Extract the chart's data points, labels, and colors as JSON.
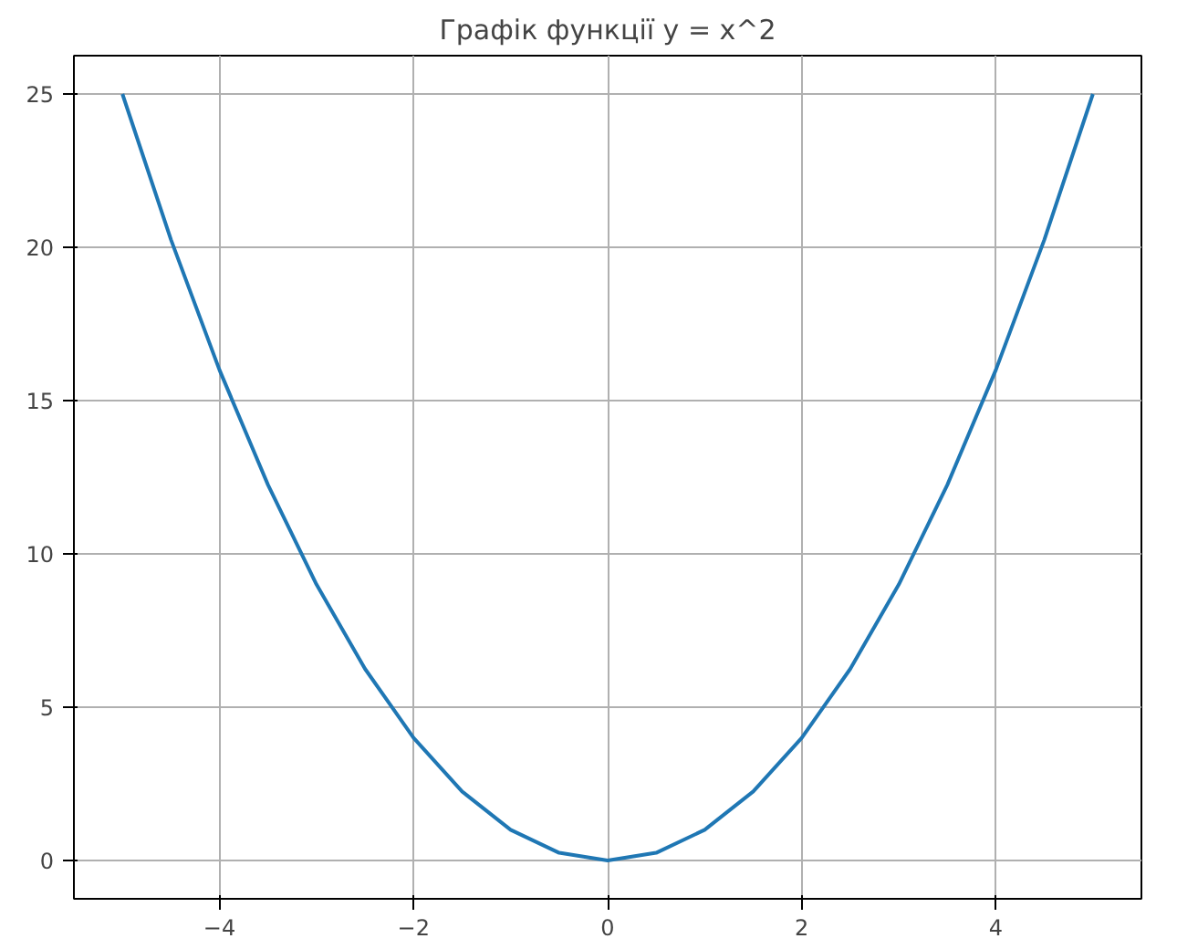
{
  "chart_data": {
    "type": "line",
    "title": "Графік функції y = x^2",
    "x": [
      -5,
      -4.5,
      -4,
      -3.5,
      -3,
      -2.5,
      -2,
      -1.5,
      -1,
      -0.5,
      0,
      0.5,
      1,
      1.5,
      2,
      2.5,
      3,
      3.5,
      4,
      4.5,
      5
    ],
    "series": [
      {
        "color": "#1f77b4",
        "values": [
          25,
          20.25,
          16,
          12.25,
          9,
          6.25,
          4,
          2.25,
          1,
          0.25,
          0,
          0.25,
          1,
          2.25,
          4,
          6.25,
          9,
          12.25,
          16,
          20.25,
          25
        ]
      }
    ],
    "xlim": [
      -5.5,
      5.5
    ],
    "ylim": [
      -1.25,
      26.25
    ],
    "xticks": [
      {
        "value": -4,
        "label": "−4"
      },
      {
        "value": -2,
        "label": "−2"
      },
      0,
      2,
      4
    ],
    "yticks": [
      0,
      5,
      10,
      15,
      20,
      25
    ],
    "grid": true,
    "line_style": "solid"
  }
}
